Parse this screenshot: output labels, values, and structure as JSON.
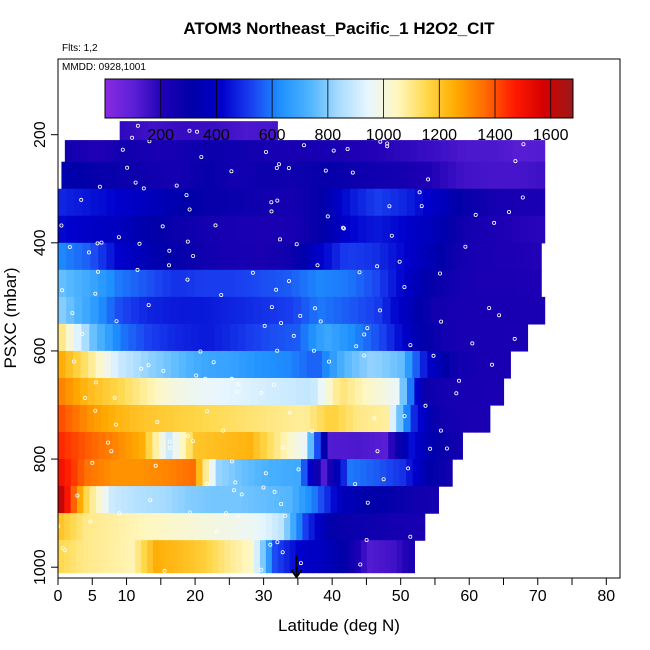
{
  "chart_data": {
    "type": "heatmap",
    "title": "ATOM3 Northeast_Pacific_1 H2O2_CIT",
    "flights_note": "Flts: 1,2",
    "date_note": "MMDD: 0928,1001",
    "xlabel": "Latitude (deg N)",
    "ylabel": "PSXC (mbar)",
    "xlim": [
      0,
      82
    ],
    "ylim": [
      1020,
      60
    ],
    "y_reversed": true,
    "grid": false,
    "x_ticks": [
      0,
      5,
      10,
      20,
      30,
      40,
      50,
      60,
      70,
      80
    ],
    "x_tick_labels": [
      "0",
      "5",
      "10",
      "20",
      "30",
      "40",
      "50",
      "60",
      "70",
      "80"
    ],
    "x_minor_ticks": [
      15,
      25,
      35,
      45,
      55,
      65,
      75
    ],
    "y_ticks": [
      200,
      400,
      600,
      800,
      1000
    ],
    "y_tick_labels": [
      "200",
      "400",
      "600",
      "800",
      "1000"
    ],
    "colorbar": {
      "range": [
        0,
        1680
      ],
      "ticks": [
        200,
        400,
        600,
        800,
        1000,
        1200,
        1400,
        1600
      ],
      "tick_labels": [
        "200",
        "400",
        "600",
        "800",
        "1000",
        "1200",
        "1400",
        "1600"
      ],
      "colors": [
        "#8a2be2",
        "#5a1fd6",
        "#1e00b4",
        "#0000a8",
        "#0000cc",
        "#1a40f0",
        "#1e90ff",
        "#4fb4ff",
        "#a8dcff",
        "#e8f6ff",
        "#fff7c0",
        "#ffd84a",
        "#ffaa00",
        "#ff6a00",
        "#ff1a00",
        "#d40000",
        "#9a1a1a"
      ]
    },
    "layers": [
      {
        "p_top": 175,
        "p_bot": 210,
        "segments": [
          {
            "x0": 9,
            "x1": 32,
            "values": [
              180,
              150,
              170,
              160,
              130,
              140
            ]
          }
        ]
      },
      {
        "p_top": 210,
        "p_bot": 250,
        "segments": [
          {
            "x0": 1,
            "x1": 71,
            "values": [
              250,
              200,
              260,
              230,
              250,
              280,
              260,
              240,
              230,
              240,
              210,
              200,
              180,
              160,
              130,
              130,
              110,
              120
            ]
          }
        ]
      },
      {
        "p_top": 250,
        "p_bot": 300,
        "segments": [
          {
            "x0": 0.5,
            "x1": 71,
            "values": [
              330,
              300,
              280,
              260,
              240,
              300,
              250,
              280,
              260,
              300,
              280,
              260,
              240,
              200,
              150,
              140,
              140,
              160
            ]
          }
        ]
      },
      {
        "p_top": 300,
        "p_bot": 350,
        "segments": [
          {
            "x0": 0,
            "x1": 71,
            "values": [
              480,
              450,
              420,
              380,
              330,
              300,
              280,
              260,
              240,
              300,
              450,
              520,
              480,
              400,
              300,
              250,
              230,
              220
            ]
          }
        ]
      },
      {
        "p_top": 350,
        "p_bot": 400,
        "segments": [
          {
            "x0": 0,
            "x1": 71,
            "values": [
              430,
              400,
              380,
              320,
              280,
              250,
              230,
              220,
              230,
              300,
              420,
              460,
              420,
              360,
              260,
              220,
              200,
              190
            ]
          }
        ]
      },
      {
        "p_top": 400,
        "p_bot": 450,
        "segments": [
          {
            "x0": 0,
            "x1": 70.5,
            "values": [
              620,
              560,
              420,
              350,
              300,
              260,
              240,
              230,
              260,
              400,
              520,
              500,
              430,
              350,
              250,
              220,
              210,
              200
            ]
          }
        ]
      },
      {
        "p_top": 450,
        "p_bot": 500,
        "segments": [
          {
            "x0": 0,
            "x1": 70.5,
            "values": [
              760,
              700,
              600,
              550,
              500,
              520,
              520,
              540,
              560,
              620,
              600,
              540,
              420,
              300,
              240,
              220,
              220,
              210
            ]
          }
        ]
      },
      {
        "p_top": 500,
        "p_bot": 550,
        "segments": [
          {
            "x0": 0,
            "x1": 71,
            "values": [
              800,
              680,
              540,
              480,
              460,
              460,
              480,
              500,
              520,
              600,
              560,
              520,
              380,
              260,
              230,
              230,
              230,
              220
            ]
          }
        ]
      },
      {
        "p_top": 550,
        "p_bot": 600,
        "segments": [
          {
            "x0": 0,
            "x1": 68.5,
            "values": [
              1100,
              780,
              600,
              520,
              480,
              460,
              500,
              540,
              560,
              700,
              620,
              520,
              360,
              250,
              230,
              230,
              220
            ]
          }
        ]
      },
      {
        "p_top": 600,
        "p_bot": 650,
        "segments": [
          {
            "x0": 0,
            "x1": 66,
            "values": [
              1250,
              1100,
              900,
              820,
              760,
              700,
              680,
              640,
              620,
              560,
              740,
              820,
              760,
              400,
              260,
              230,
              230
            ]
          }
        ]
      },
      {
        "p_top": 650,
        "p_bot": 700,
        "segments": [
          {
            "x0": 0,
            "x1": 65,
            "values": [
              1320,
              1220,
              1160,
              1080,
              1000,
              960,
              940,
              920,
              900,
              880,
              1120,
              1040,
              960,
              280,
              240,
              230,
              220
            ]
          }
        ]
      },
      {
        "p_top": 700,
        "p_bot": 750,
        "segments": [
          {
            "x0": 0,
            "x1": 63,
            "values": [
              1400,
              1300,
              1240,
              1200,
              1180,
              1160,
              1140,
              1120,
              1100,
              1080,
              1180,
              1100,
              1080,
              500,
              260,
              230,
              220
            ]
          }
        ]
      },
      {
        "p_top": 750,
        "p_bot": 800,
        "segments": [
          {
            "x0": 0,
            "x1": 59,
            "values": [
              1450,
              1380,
              1320,
              1250,
              900,
              1200,
              1220,
              1240,
              1100,
              960,
              120,
              130,
              110,
              440,
              300,
              240
            ]
          }
        ]
      },
      {
        "p_top": 800,
        "p_bot": 850,
        "segments": [
          {
            "x0": 0,
            "x1": 57.5,
            "values": [
              1500,
              1350,
              1300,
              1300,
              1320,
              1360,
              820,
              760,
              720,
              700,
              120,
              600,
              560,
              500,
              320,
              240
            ]
          }
        ]
      },
      {
        "p_top": 850,
        "p_bot": 900,
        "segments": [
          {
            "x0": 0,
            "x1": 55.5,
            "values": [
              1600,
              1150,
              900,
              860,
              840,
              800,
              780,
              780,
              760,
              740,
              600,
              380,
              320,
              300,
              260,
              240
            ]
          }
        ]
      },
      {
        "p_top": 900,
        "p_bot": 950,
        "segments": [
          {
            "x0": 0,
            "x1": 53.5,
            "values": [
              1200,
              1100,
              1080,
              1060,
              1040,
              1020,
              1000,
              980,
              960,
              880,
              520,
              300,
              280,
              260,
              240,
              230
            ]
          }
        ]
      },
      {
        "p_top": 950,
        "p_bot": 1010,
        "segments": [
          {
            "x0": 0,
            "x1": 52,
            "values": [
              1150,
              1100,
              1080,
              1060,
              1250,
              1220,
              1180,
              1100,
              1040,
              540,
              420,
              380,
              300,
              120,
              150,
              250
            ]
          }
        ]
      }
    ],
    "arrow_marker_lat": 34.8
  }
}
